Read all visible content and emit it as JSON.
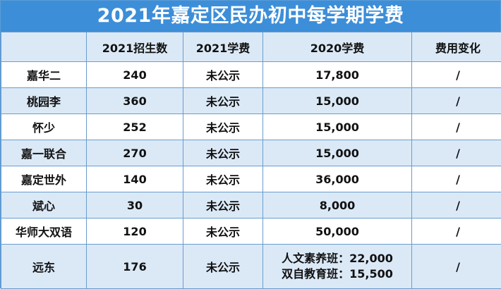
{
  "title": "2021年嘉定区民办初中每学期学费",
  "table": {
    "headers": [
      "",
      "2021招生数",
      "2021学费",
      "2020学费",
      "费用变化"
    ],
    "rows": [
      {
        "school": "嘉华二",
        "enroll": "240",
        "fee2021": "未公示",
        "fee2020": "17,800",
        "change": "/"
      },
      {
        "school": "桃园李",
        "enroll": "360",
        "fee2021": "未公示",
        "fee2020": "15,000",
        "change": "/"
      },
      {
        "school": "怀少",
        "enroll": "252",
        "fee2021": "未公示",
        "fee2020": "15,000",
        "change": "/"
      },
      {
        "school": "嘉一联合",
        "enroll": "270",
        "fee2021": "未公示",
        "fee2020": "15,000",
        "change": "/"
      },
      {
        "school": "嘉定世外",
        "enroll": "140",
        "fee2021": "未公示",
        "fee2020": "36,000",
        "change": "/"
      },
      {
        "school": "斌心",
        "enroll": "30",
        "fee2021": "未公示",
        "fee2020": "8,000",
        "change": "/"
      },
      {
        "school": "华师大双语",
        "enroll": "120",
        "fee2021": "未公示",
        "fee2020": "50,000",
        "change": "/"
      },
      {
        "school": "远东",
        "enroll": "176",
        "fee2021": "未公示",
        "fee2020_lines": [
          "人文素养班：22,000",
          "双自教育班：15,500"
        ],
        "change": "/"
      }
    ]
  }
}
